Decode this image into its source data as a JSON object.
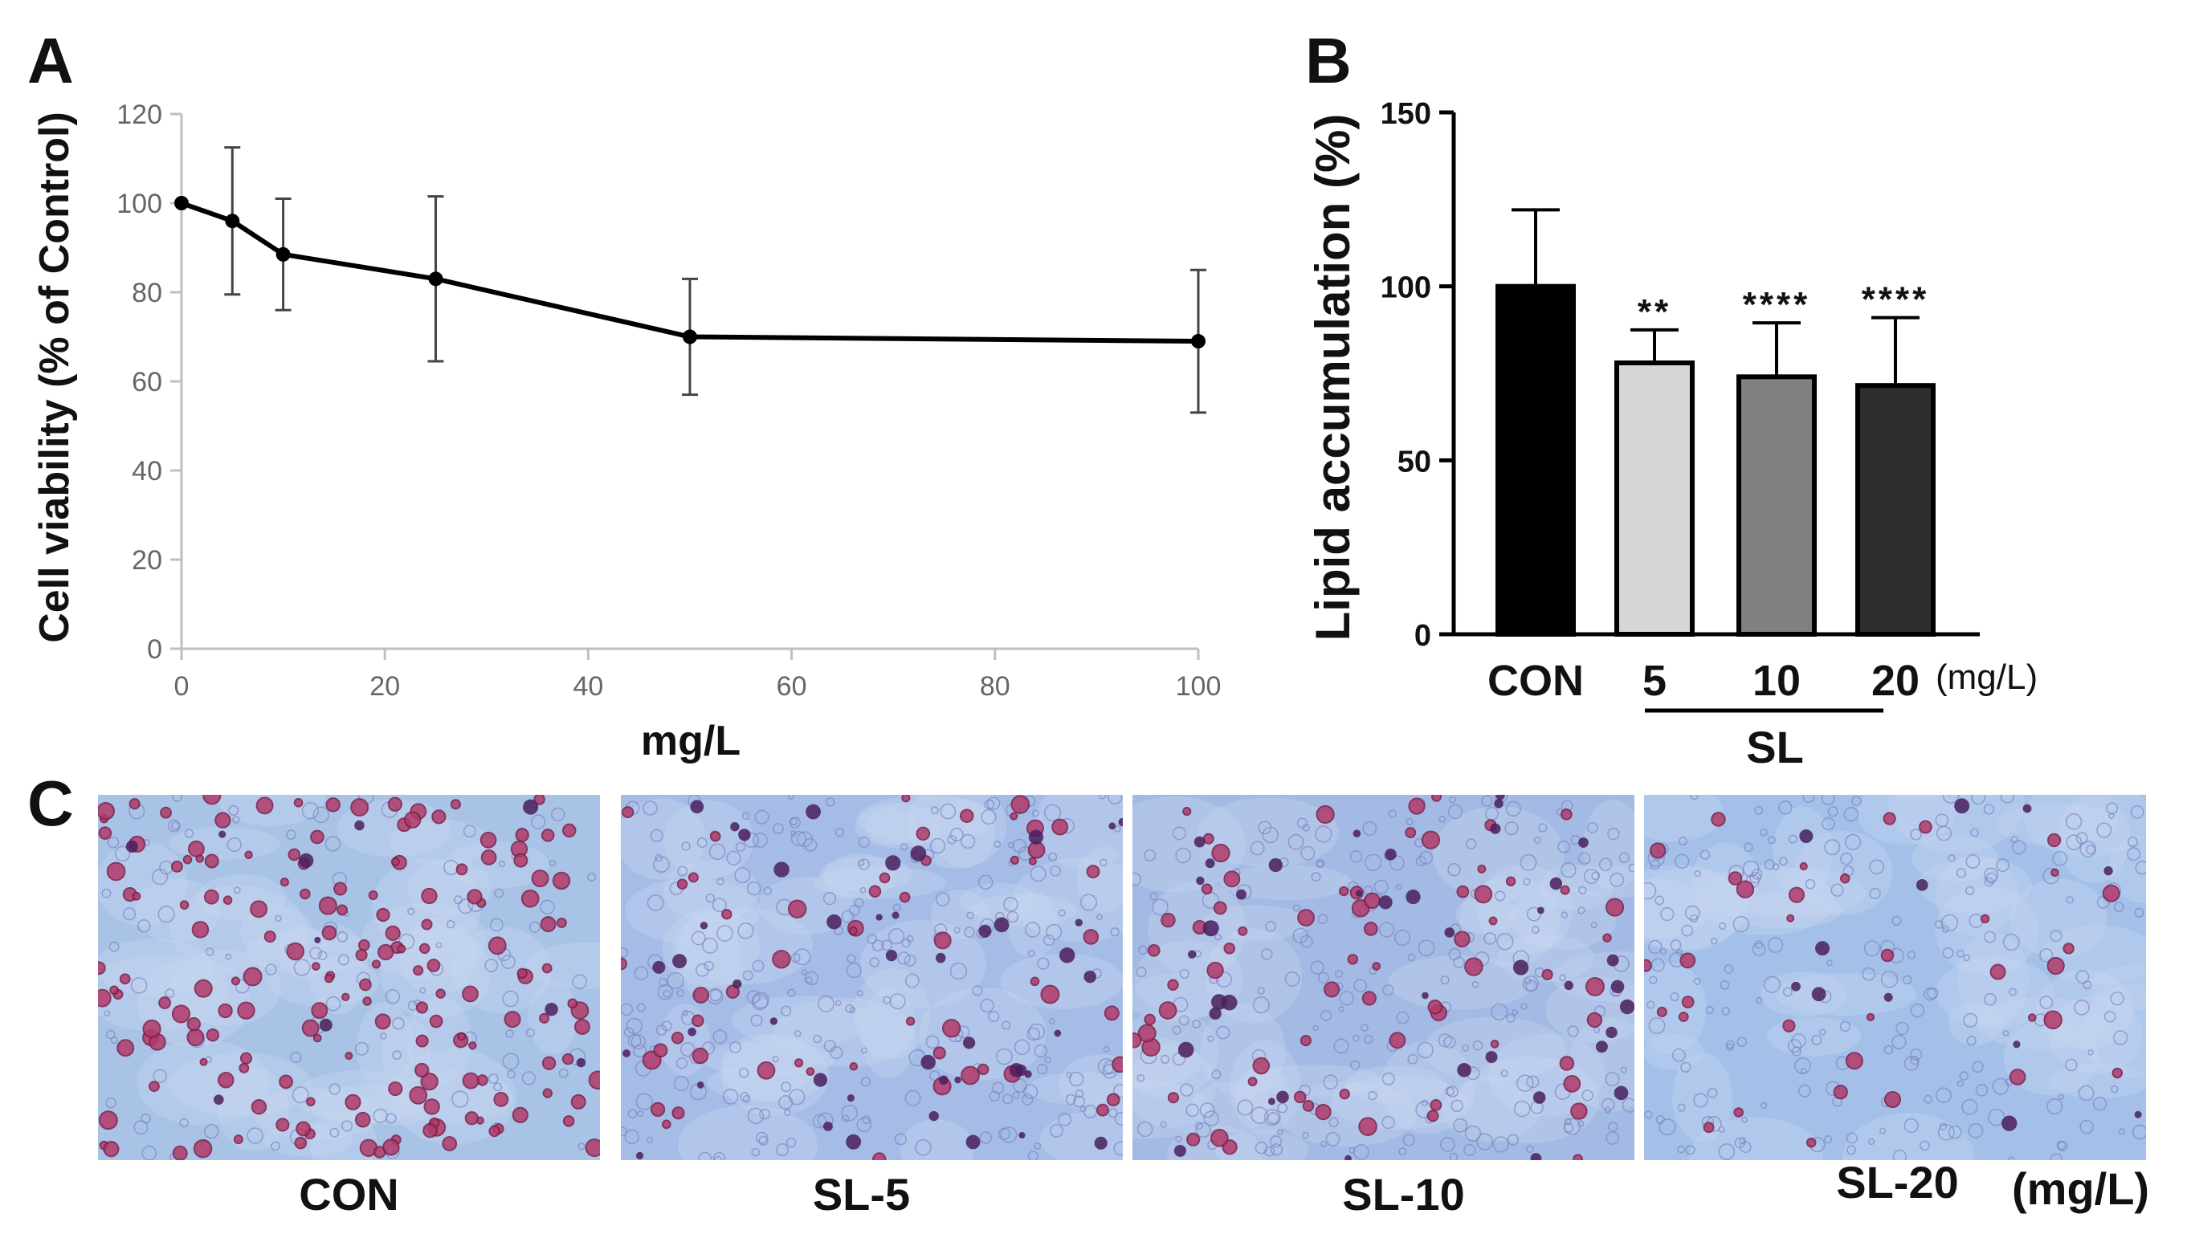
{
  "panels": {
    "a_letter": "A",
    "b_letter": "B",
    "c_letter": "C"
  },
  "chart_data": [
    {
      "panel": "A",
      "type": "line",
      "xlabel": "mg/L",
      "ylabel": "Cell viability (% of Control)",
      "xlim": [
        0,
        100
      ],
      "ylim": [
        0,
        120
      ],
      "xticks": [
        0,
        20,
        40,
        60,
        80,
        100
      ],
      "yticks": [
        0,
        20,
        40,
        60,
        80,
        100,
        120
      ],
      "grid": false,
      "x": [
        0,
        5,
        10,
        25,
        50,
        100
      ],
      "y": [
        100,
        96,
        88.5,
        83,
        70,
        69
      ],
      "error": [
        0,
        16.5,
        12.5,
        18.5,
        13,
        16
      ],
      "color": "#000000"
    },
    {
      "panel": "B",
      "type": "bar",
      "ylabel": "Lipid accumulation (%)",
      "ylim": [
        0,
        150
      ],
      "yticks": [
        0,
        50,
        100,
        150
      ],
      "categories": [
        "CON",
        "5",
        "10",
        "20"
      ],
      "values": [
        100,
        78,
        74,
        71.5
      ],
      "error": [
        22,
        9.5,
        15.5,
        19.5
      ],
      "significance": [
        "",
        "**",
        "****",
        "****"
      ],
      "bar_colors": [
        "#000000",
        "#d6d6d6",
        "#808080",
        "#2e2e2e"
      ],
      "unit_label": "(mg/L)",
      "group_label": "SL"
    }
  ],
  "micrographs": {
    "labels": [
      "CON",
      "SL-5",
      "SL-10",
      "SL-20"
    ],
    "unit": "(mg/L)"
  }
}
